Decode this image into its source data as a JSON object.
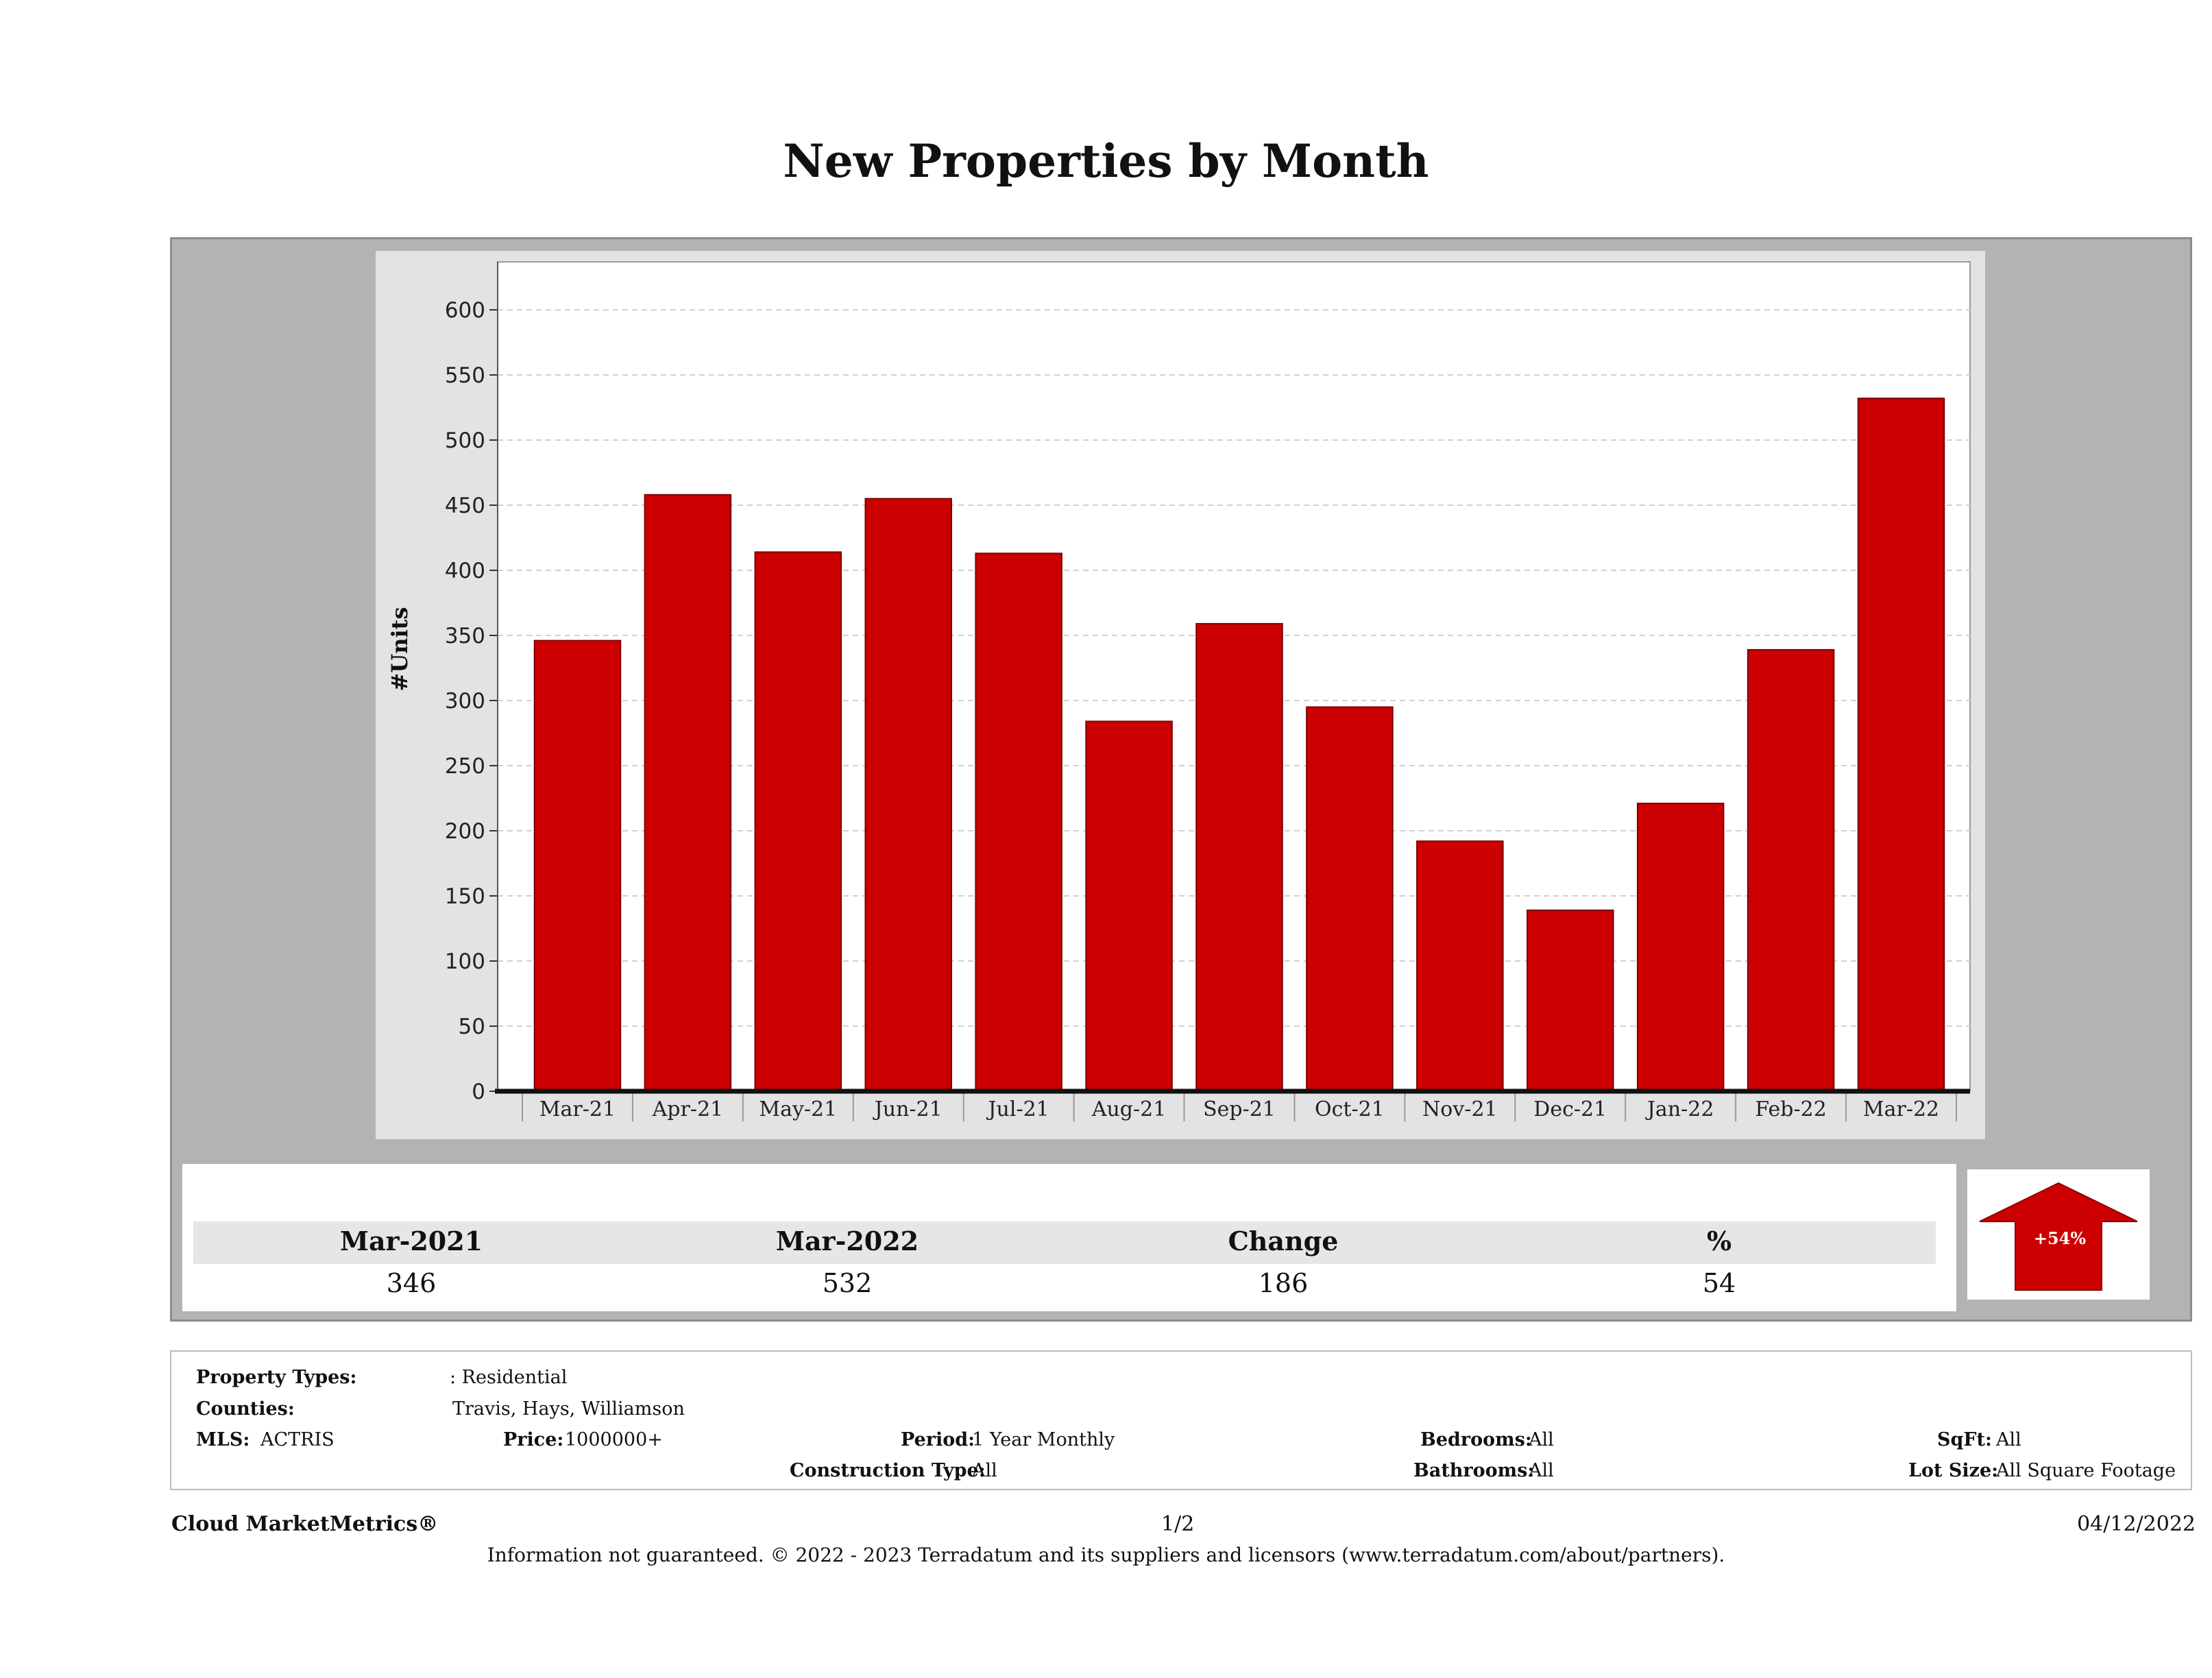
{
  "page": {
    "title": "New Properties by Month"
  },
  "chart_data": {
    "type": "bar",
    "categories": [
      "Mar-21",
      "Apr-21",
      "May-21",
      "Jun-21",
      "Jul-21",
      "Aug-21",
      "Sep-21",
      "Oct-21",
      "Nov-21",
      "Dec-21",
      "Jan-22",
      "Feb-22",
      "Mar-22"
    ],
    "values": [
      346,
      458,
      414,
      455,
      413,
      284,
      359,
      295,
      192,
      139,
      221,
      339,
      532
    ],
    "ylabel": "#Units",
    "ylim": [
      0,
      600
    ],
    "yticks": [
      0,
      50,
      100,
      150,
      200,
      250,
      300,
      350,
      400,
      450,
      500,
      550,
      600
    ],
    "bar_color": "#cc0000",
    "grid": true
  },
  "summary": {
    "headers": [
      "Mar-2021",
      "Mar-2022",
      "Change",
      "%"
    ],
    "values": [
      "346",
      "532",
      "186",
      "54"
    ],
    "arrow_label": "+54%",
    "arrow_color": "#cc0000"
  },
  "criteria": {
    "property_types_label": "Property Types:",
    "property_types_value": ": Residential",
    "counties_label": "Counties:",
    "counties_value": "Travis, Hays, Williamson",
    "mls_label": "MLS:",
    "mls_value": "ACTRIS",
    "price_label": "Price:",
    "price_value": "1000000+",
    "period_label": "Period:",
    "period_value": "1 Year Monthly",
    "construction_label": "Construction Type:",
    "construction_value": "All",
    "bedrooms_label": "Bedrooms:",
    "bedrooms_value": "All",
    "bathrooms_label": "Bathrooms:",
    "bathrooms_value": "All",
    "sqft_label": "SqFt:",
    "sqft_value": "All",
    "lot_label": "Lot Size:",
    "lot_value": "All Square Footage"
  },
  "footer": {
    "brand": "Cloud MarketMetrics®",
    "page_num": "1/2",
    "date": "04/12/2022",
    "disclaimer": "Information not guaranteed. © 2022 - 2023 Terradatum and its suppliers and licensors (www.terradatum.com/about/partners)."
  }
}
